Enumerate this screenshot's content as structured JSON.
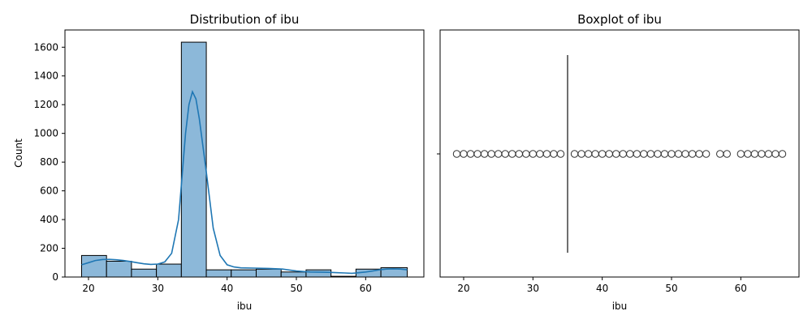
{
  "chart_data": [
    {
      "type": "bar",
      "title": "Distribution of ibu",
      "xlabel": "ibu",
      "ylabel": "Count",
      "xlim": [
        16.6,
        68.4
      ],
      "ylim": [
        0,
        1720
      ],
      "xticks": [
        20,
        30,
        40,
        50,
        60
      ],
      "yticks": [
        0,
        200,
        400,
        600,
        800,
        1000,
        1200,
        1400,
        1600
      ],
      "bins": [
        {
          "x0": 19.0,
          "x1": 22.6,
          "count": 150
        },
        {
          "x0": 22.6,
          "x1": 26.2,
          "count": 110
        },
        {
          "x0": 26.2,
          "x1": 29.8,
          "count": 55
        },
        {
          "x0": 29.8,
          "x1": 33.4,
          "count": 90
        },
        {
          "x0": 33.4,
          "x1": 37.0,
          "count": 1635
        },
        {
          "x0": 37.0,
          "x1": 40.6,
          "count": 50
        },
        {
          "x0": 40.6,
          "x1": 44.2,
          "count": 50
        },
        {
          "x0": 44.2,
          "x1": 47.8,
          "count": 55
        },
        {
          "x0": 47.8,
          "x1": 51.4,
          "count": 35
        },
        {
          "x0": 51.4,
          "x1": 55.0,
          "count": 50
        },
        {
          "x0": 55.0,
          "x1": 58.6,
          "count": 5
        },
        {
          "x0": 58.6,
          "x1": 62.2,
          "count": 55
        },
        {
          "x0": 62.2,
          "x1": 66.0,
          "count": 65
        }
      ],
      "kde": {
        "x": [
          19,
          20,
          21,
          22,
          23,
          24,
          25,
          26,
          27,
          28,
          29,
          30,
          31,
          32,
          33,
          34,
          34.5,
          35,
          35.5,
          36,
          37,
          38,
          39,
          40,
          41,
          42,
          44,
          46,
          48,
          50,
          52,
          54,
          55,
          56,
          57,
          58,
          59,
          60,
          61,
          62,
          63,
          64,
          65,
          66
        ],
        "y": [
          85,
          100,
          115,
          122,
          123,
          120,
          115,
          108,
          100,
          92,
          88,
          90,
          105,
          165,
          400,
          1000,
          1200,
          1290,
          1240,
          1100,
          730,
          340,
          150,
          85,
          70,
          64,
          62,
          60,
          55,
          42,
          35,
          33,
          32,
          30,
          28,
          26,
          30,
          35,
          42,
          50,
          55,
          57,
          55,
          50
        ]
      },
      "bar_color": "#8cb8d9",
      "line_color": "#1f77b4"
    },
    {
      "type": "box",
      "title": "Boxplot of ibu",
      "xlabel": "ibu",
      "xlim": [
        16.6,
        68.4
      ],
      "xticks": [
        20,
        30,
        40,
        50,
        60
      ],
      "median": 35,
      "q1": 35,
      "q3": 35,
      "whisker_low": 35,
      "whisker_high": 35,
      "outliers": [
        19,
        20,
        21,
        22,
        23,
        24,
        25,
        26,
        27,
        28,
        29,
        30,
        31,
        32,
        33,
        34,
        36,
        37,
        38,
        39,
        40,
        41,
        42,
        43,
        44,
        45,
        46,
        47,
        48,
        49,
        50,
        51,
        52,
        53,
        54,
        55,
        57,
        58,
        60,
        61,
        62,
        63,
        64,
        65,
        66
      ],
      "line_color": "#333333"
    }
  ]
}
